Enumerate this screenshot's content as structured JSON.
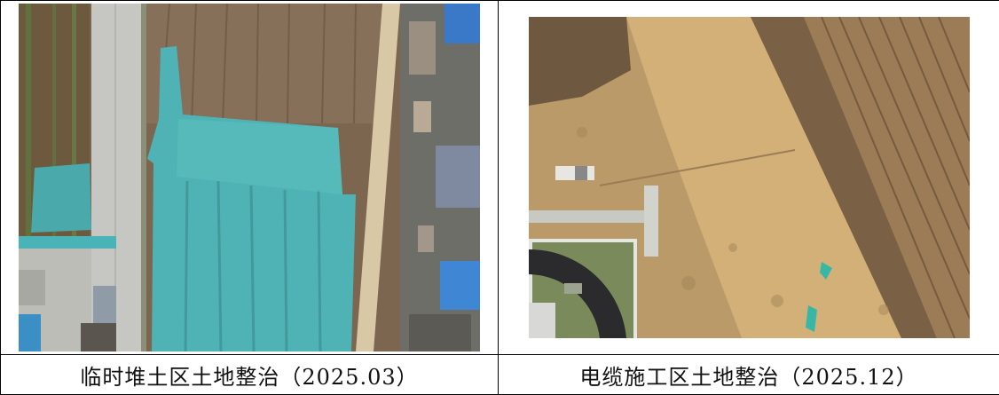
{
  "panels": [
    {
      "caption": "临时堆土区土地整治（2025.03）",
      "photo_subject": "aerial photo of temporary soil stockpile area covered with green dust nets"
    },
    {
      "caption": "电缆施工区土地整治（2025.12）",
      "photo_subject": "aerial photo of cable construction area with bare leveled soil"
    }
  ],
  "colors": {
    "net_teal": "#4fb3b5",
    "soil_brown": "#8a6a4d",
    "bare_soil": "#c9a56a",
    "road_gray": "#c8c8c4",
    "border": "#000000"
  }
}
